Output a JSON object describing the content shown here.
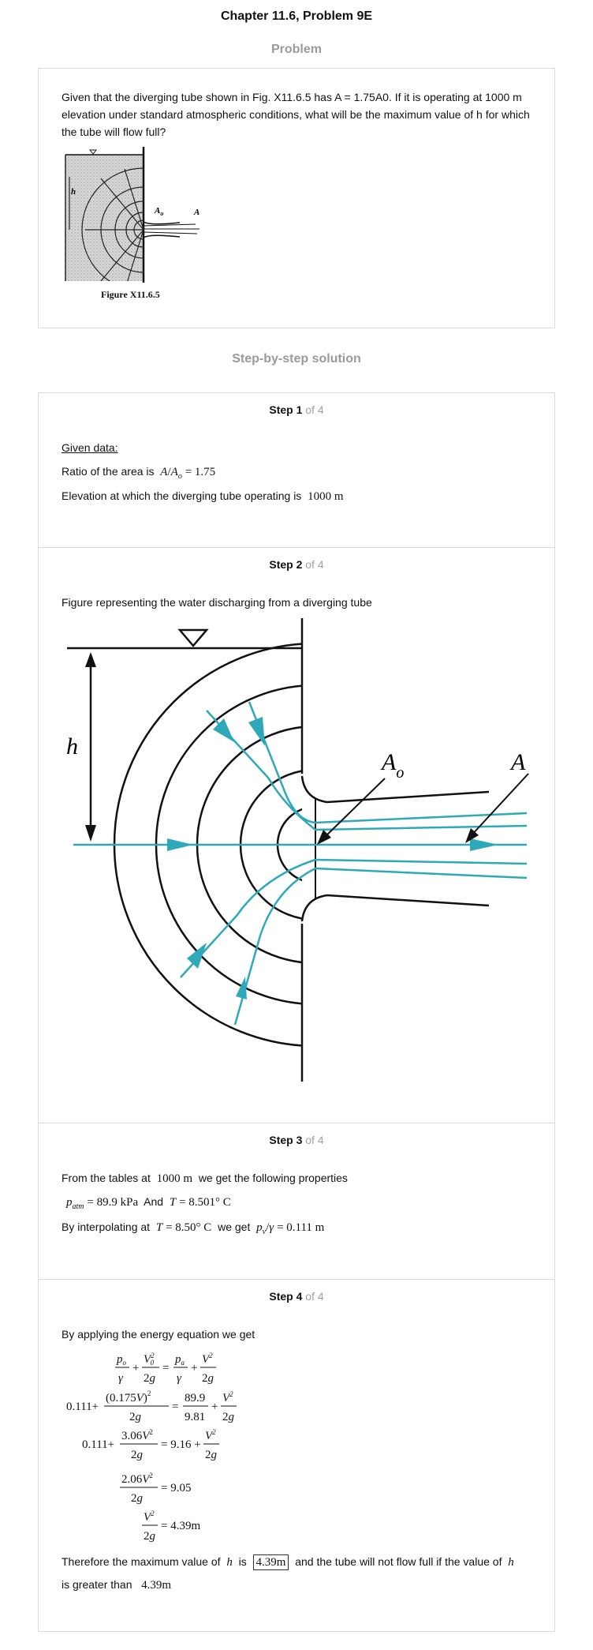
{
  "header": {
    "title": "Chapter 11.6, Problem 9E"
  },
  "problem": {
    "heading": "Problem",
    "text": "Given that the diverging tube shown in Fig. X11.6.5 has A = 1.75A0. If it is operating at 1000 m elevation under standard atmospheric conditions, what will be the maximum value of h for which the tube will flow full?",
    "figure_caption": "Figure X11.6.5",
    "figure_labels": {
      "h": "h",
      "ao": "A",
      "ao_sub": "o",
      "a": "A"
    }
  },
  "solution": {
    "heading": "Step-by-step solution",
    "of_total": "of 4",
    "step1": {
      "label": "Step 1",
      "given": "Given data:",
      "ratio_text": "Ratio of the area is",
      "ratio_value": "= 1.75",
      "elev_text": "Elevation at which the diverging tube operating is",
      "elev_value": "1000 m"
    },
    "step2": {
      "label": "Step 2",
      "text": "Figure representing the water discharging from a diverging tube",
      "labels": {
        "h": "h",
        "ao": "A",
        "ao_sub": "o",
        "a": "A"
      }
    },
    "step3": {
      "label": "Step 3",
      "line1_a": "From the tables at",
      "line1_val": "1000 m",
      "line1_b": "we get the following properties",
      "patm": "= 89.9 kPa",
      "and": "And",
      "t_val": "= 8.501° C",
      "interp_a": "By interpolating at",
      "interp_t": "= 8.50° C",
      "interp_b": "we get",
      "pv_val": "= 0.111 m"
    },
    "step4": {
      "label": "Step 4",
      "intro": "By applying the energy equation we get",
      "conclusion_a": "Therefore the maximum value of",
      "conclusion_b": "is",
      "answer": "4.39m",
      "conclusion_c": "and the tube will not flow full if the value of",
      "conclusion_d": "is greater than",
      "final_value": "4.39m"
    }
  }
}
